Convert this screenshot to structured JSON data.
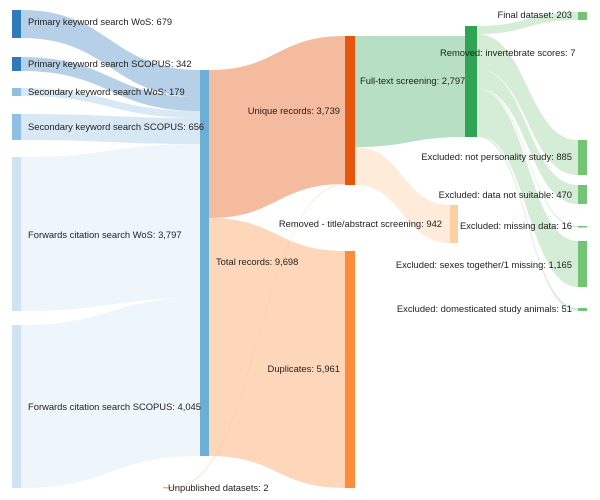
{
  "chart_data": {
    "type": "sankey",
    "nodes": [
      {
        "id": "pk_wos",
        "label": "Primary keyword search WoS: 679",
        "value": 679,
        "color": "#2f7ab9"
      },
      {
        "id": "pk_scopus",
        "label": "Primary keyword search SCOPUS: 342",
        "value": 342,
        "color": "#2f7ab9"
      },
      {
        "id": "sk_wos",
        "label": "Secondary keyword search WoS: 179",
        "value": 179,
        "color": "#8fc0e3"
      },
      {
        "id": "sk_scopus",
        "label": "Secondary keyword search SCOPUS: 656",
        "value": 656,
        "color": "#8fc0e3"
      },
      {
        "id": "fc_wos",
        "label": "Forwards citation search WoS: 3,797",
        "value": 3797,
        "color": "#cfe3f3"
      },
      {
        "id": "fc_scopus",
        "label": "Forwards citation search SCOPUS: 4,045",
        "value": 4045,
        "color": "#cfe3f3"
      },
      {
        "id": "total",
        "label": "Total records: 9,698",
        "value": 9698,
        "color": "#6baed6"
      },
      {
        "id": "unpublished",
        "label": "Unpublished datasets: 2",
        "value": 2,
        "color": "#fdae6b"
      },
      {
        "id": "unique",
        "label": "Unique records: 3,739",
        "value": 3739,
        "color": "#e6550d"
      },
      {
        "id": "duplicates",
        "label": "Duplicates: 5,961",
        "value": 5961,
        "color": "#fd8d3c"
      },
      {
        "id": "fulltext",
        "label": "Full-text screening: 2,797",
        "value": 2797,
        "color": "#31a354"
      },
      {
        "id": "removed_ta",
        "label": "Removed - title/abstract screening: 942",
        "value": 942,
        "color": "#fdd0a2"
      },
      {
        "id": "removed_inv",
        "label": "Removed: invertebrate scores: 7",
        "value": 7,
        "color": "#31a354"
      },
      {
        "id": "final",
        "label": "Final dataset: 203",
        "value": 203,
        "color": "#74c476"
      },
      {
        "id": "excl_pers",
        "label": "Excluded: not personality study: 885",
        "value": 885,
        "color": "#74c476"
      },
      {
        "id": "excl_suit",
        "label": "Excluded: data not suitable: 470",
        "value": 470,
        "color": "#74c476"
      },
      {
        "id": "excl_miss",
        "label": "Excluded: missing data: 16",
        "value": 16,
        "color": "#74c476"
      },
      {
        "id": "excl_sex",
        "label": "Excluded: sexes together/1 missing: 1,165",
        "value": 1165,
        "color": "#74c476"
      },
      {
        "id": "excl_dom",
        "label": "Excluded: domesticated study animals: 51",
        "value": 51,
        "color": "#74c476"
      }
    ],
    "links": [
      {
        "source": "pk_wos",
        "target": "total",
        "value": 679
      },
      {
        "source": "pk_scopus",
        "target": "total",
        "value": 342
      },
      {
        "source": "sk_wos",
        "target": "total",
        "value": 179
      },
      {
        "source": "sk_scopus",
        "target": "total",
        "value": 656
      },
      {
        "source": "fc_wos",
        "target": "total",
        "value": 3797
      },
      {
        "source": "fc_scopus",
        "target": "total",
        "value": 4045
      },
      {
        "source": "total",
        "target": "unique",
        "value": 3737
      },
      {
        "source": "total",
        "target": "duplicates",
        "value": 5961
      },
      {
        "source": "unpublished",
        "target": "unique",
        "value": 2
      },
      {
        "source": "unique",
        "target": "fulltext",
        "value": 2797
      },
      {
        "source": "unique",
        "target": "removed_ta",
        "value": 942
      },
      {
        "source": "fulltext",
        "target": "removed_inv",
        "value": 2797
      },
      {
        "source": "removed_inv",
        "target": "final",
        "value": 203
      },
      {
        "source": "removed_inv",
        "target": "excl_pers",
        "value": 885
      },
      {
        "source": "removed_inv",
        "target": "excl_suit",
        "value": 470
      },
      {
        "source": "removed_inv",
        "target": "excl_miss",
        "value": 16
      },
      {
        "source": "removed_inv",
        "target": "excl_sex",
        "value": 1165
      },
      {
        "source": "removed_inv",
        "target": "excl_dom",
        "value": 51
      }
    ]
  }
}
